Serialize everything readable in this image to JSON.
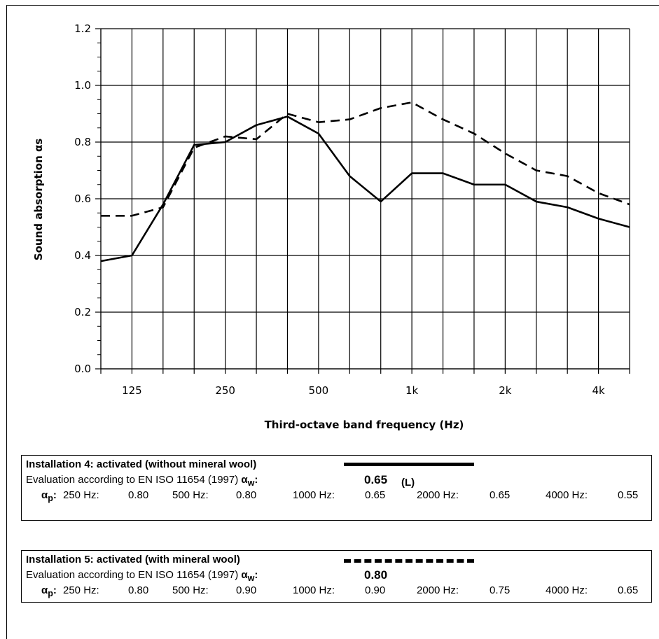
{
  "chart_data": {
    "type": "line",
    "xlabel": "Third-octave band frequency (Hz)",
    "ylabel": "Sound absorption αs",
    "ylim": [
      0,
      1.2
    ],
    "yticks": [
      "0.0",
      "0.2",
      "0.4",
      "0.6",
      "0.8",
      "1.0",
      "1.2"
    ],
    "x": [
      100,
      125,
      160,
      200,
      250,
      315,
      400,
      500,
      630,
      800,
      1000,
      1250,
      1600,
      2000,
      2500,
      3150,
      4000,
      5000
    ],
    "xtick_labels": [
      {
        "x": 125,
        "label": "125"
      },
      {
        "x": 250,
        "label": "250"
      },
      {
        "x": 500,
        "label": "500"
      },
      {
        "x": 1000,
        "label": "1k"
      },
      {
        "x": 2000,
        "label": "2k"
      },
      {
        "x": 4000,
        "label": "4k"
      }
    ],
    "grid": true,
    "series": [
      {
        "name": "Installation 4: activated (without mineral wool)",
        "style": "solid",
        "color": "#000000",
        "values": [
          0.38,
          0.4,
          0.58,
          0.79,
          0.8,
          0.86,
          0.89,
          0.83,
          0.68,
          0.59,
          0.69,
          0.69,
          0.65,
          0.65,
          0.59,
          0.57,
          0.53,
          0.5
        ]
      },
      {
        "name": "Installation 5: activated (with mineral wool)",
        "style": "dashed",
        "color": "#000000",
        "values": [
          0.54,
          0.54,
          0.57,
          0.78,
          0.82,
          0.81,
          0.9,
          0.87,
          0.88,
          0.92,
          0.94,
          0.88,
          0.83,
          0.76,
          0.7,
          0.68,
          0.62,
          0.58
        ]
      }
    ]
  },
  "boxes": [
    {
      "title": "Installation 4: activated (without mineral wool)",
      "evaluation_label": "Evaluation according to EN ISO 11654 (1997)",
      "aw_label": "α",
      "aw_sub": "w",
      "aw_value": "0.65",
      "aw_suffix": "(L)",
      "ap_label": "α",
      "ap_sub": "p",
      "bands": [
        {
          "label": "250 Hz:",
          "value": "0.80"
        },
        {
          "label": "500 Hz:",
          "value": "0.80"
        },
        {
          "label": "1000 Hz:",
          "value": "0.65"
        },
        {
          "label": "2000 Hz:",
          "value": "0.65"
        },
        {
          "label": "4000 Hz:",
          "value": "0.55"
        }
      ]
    },
    {
      "title": "Installation 5: activated (with mineral wool)",
      "evaluation_label": "Evaluation according to EN ISO 11654 (1997)",
      "aw_label": "α",
      "aw_sub": "w",
      "aw_value": "0.80",
      "aw_suffix": "",
      "ap_label": "α",
      "ap_sub": "p",
      "bands": [
        {
          "label": "250 Hz:",
          "value": "0.80"
        },
        {
          "label": "500 Hz:",
          "value": "0.90"
        },
        {
          "label": "1000 Hz:",
          "value": "0.90"
        },
        {
          "label": "2000 Hz:",
          "value": "0.75"
        },
        {
          "label": "4000 Hz:",
          "value": "0.65"
        }
      ]
    }
  ]
}
